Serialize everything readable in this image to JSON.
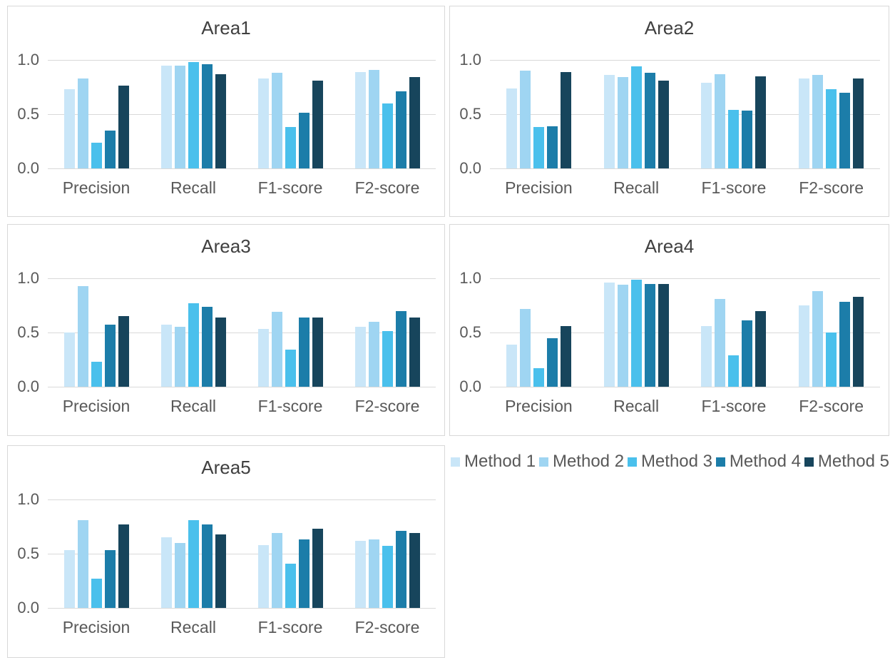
{
  "page": {
    "background": "#FFFFFF",
    "panel_border_color": "#D8D8D8",
    "gridline_color": "#D9D9D9",
    "title_color": "#404040",
    "axis_text_color": "#595959"
  },
  "series_colors": [
    "#C9E6F8",
    "#9FD5F2",
    "#4AC0EC",
    "#1C7DA9",
    "#17455C"
  ],
  "legend": {
    "items": [
      "Method 1",
      "Method 2",
      "Method 3",
      "Method 4",
      "Method 5"
    ]
  },
  "chart_data": [
    {
      "type": "bar",
      "title": "Area1",
      "categories": [
        "Precision",
        "Recall",
        "F1-score",
        "F2-score"
      ],
      "yticks": [
        "1.0",
        "0.5",
        "0.0"
      ],
      "ylim": [
        0,
        1.0
      ],
      "grid": "horizontal",
      "legend_position": "shared-below-right-column",
      "series": [
        {
          "name": "Method 1",
          "values": [
            0.73,
            0.95,
            0.83,
            0.89
          ]
        },
        {
          "name": "Method 2",
          "values": [
            0.83,
            0.95,
            0.88,
            0.91
          ]
        },
        {
          "name": "Method 3",
          "values": [
            0.24,
            0.98,
            0.38,
            0.6
          ]
        },
        {
          "name": "Method 4",
          "values": [
            0.35,
            0.96,
            0.51,
            0.71
          ]
        },
        {
          "name": "Method 5",
          "values": [
            0.76,
            0.87,
            0.81,
            0.84
          ]
        }
      ]
    },
    {
      "type": "bar",
      "title": "Area2",
      "categories": [
        "Precision",
        "Recall",
        "F1-score",
        "F2-score"
      ],
      "yticks": [
        "1.0",
        "0.5",
        "0.0"
      ],
      "ylim": [
        0,
        1.0
      ],
      "grid": "horizontal",
      "legend_position": "shared-below-right-column",
      "series": [
        {
          "name": "Method 1",
          "values": [
            0.74,
            0.86,
            0.79,
            0.83
          ]
        },
        {
          "name": "Method 2",
          "values": [
            0.9,
            0.84,
            0.87,
            0.86
          ]
        },
        {
          "name": "Method 3",
          "values": [
            0.38,
            0.94,
            0.54,
            0.73
          ]
        },
        {
          "name": "Method 4",
          "values": [
            0.39,
            0.88,
            0.53,
            0.7
          ]
        },
        {
          "name": "Method 5",
          "values": [
            0.89,
            0.81,
            0.85,
            0.83
          ]
        }
      ]
    },
    {
      "type": "bar",
      "title": "Area3",
      "categories": [
        "Precision",
        "Recall",
        "F1-score",
        "F2-score"
      ],
      "yticks": [
        "1.0",
        "0.5",
        "0.0"
      ],
      "ylim": [
        0,
        1.0
      ],
      "grid": "horizontal",
      "legend_position": "shared-below-right-column",
      "series": [
        {
          "name": "Method 1",
          "values": [
            0.5,
            0.57,
            0.53,
            0.55
          ]
        },
        {
          "name": "Method 2",
          "values": [
            0.93,
            0.55,
            0.69,
            0.6
          ]
        },
        {
          "name": "Method 3",
          "values": [
            0.23,
            0.77,
            0.34,
            0.51
          ]
        },
        {
          "name": "Method 4",
          "values": [
            0.57,
            0.74,
            0.64,
            0.7
          ]
        },
        {
          "name": "Method 5",
          "values": [
            0.65,
            0.64,
            0.64,
            0.64
          ]
        }
      ]
    },
    {
      "type": "bar",
      "title": "Area4",
      "categories": [
        "Precision",
        "Recall",
        "F1-score",
        "F2-score"
      ],
      "yticks": [
        "1.0",
        "0.5",
        "0.0"
      ],
      "ylim": [
        0,
        1.0
      ],
      "grid": "horizontal",
      "legend_position": "shared-below-right-column",
      "series": [
        {
          "name": "Method 1",
          "values": [
            0.39,
            0.96,
            0.56,
            0.75
          ]
        },
        {
          "name": "Method 2",
          "values": [
            0.72,
            0.94,
            0.81,
            0.88
          ]
        },
        {
          "name": "Method 3",
          "values": [
            0.17,
            0.99,
            0.29,
            0.5
          ]
        },
        {
          "name": "Method 4",
          "values": [
            0.45,
            0.95,
            0.61,
            0.78
          ]
        },
        {
          "name": "Method 5",
          "values": [
            0.56,
            0.95,
            0.7,
            0.83
          ]
        }
      ]
    },
    {
      "type": "bar",
      "title": "Area5",
      "categories": [
        "Precision",
        "Recall",
        "F1-score",
        "F2-score"
      ],
      "yticks": [
        "1.0",
        "0.5",
        "0.0"
      ],
      "ylim": [
        0,
        1.0
      ],
      "grid": "horizontal",
      "legend_position": "shared-below-right-column",
      "series": [
        {
          "name": "Method 1",
          "values": [
            0.53,
            0.65,
            0.58,
            0.62
          ]
        },
        {
          "name": "Method 2",
          "values": [
            0.81,
            0.6,
            0.69,
            0.63
          ]
        },
        {
          "name": "Method 3",
          "values": [
            0.27,
            0.81,
            0.41,
            0.57
          ]
        },
        {
          "name": "Method 4",
          "values": [
            0.53,
            0.77,
            0.63,
            0.71
          ]
        },
        {
          "name": "Method 5",
          "values": [
            0.77,
            0.68,
            0.73,
            0.69
          ]
        }
      ]
    }
  ]
}
